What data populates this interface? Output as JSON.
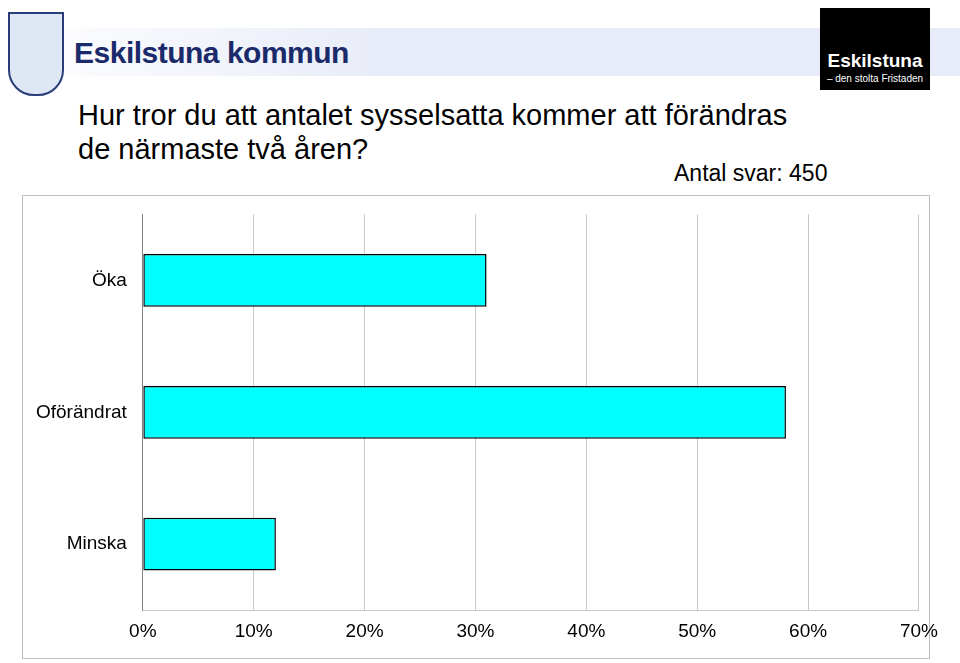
{
  "header": {
    "title": "Eskilstuna kommun",
    "logo": [
      "Eskilstuna",
      "– den stolta Fristaden"
    ]
  },
  "chart_data": {
    "type": "bar",
    "orientation": "horizontal",
    "title": "Hur tror du att antalet sysselsatta kommer att förändras de närmaste två åren?",
    "annotations": [
      "Antal svar: 450"
    ],
    "categories": [
      "Öka",
      "Oförändrat",
      "Minska"
    ],
    "values": [
      31,
      58,
      12
    ],
    "color": "#00ffff",
    "xlim": [
      0,
      70
    ],
    "xticks": [
      {
        "value": 0,
        "label": "0%"
      },
      {
        "value": 10,
        "label": "10%"
      },
      {
        "value": 20,
        "label": "20%"
      },
      {
        "value": 30,
        "label": "30%"
      },
      {
        "value": 40,
        "label": "40%"
      },
      {
        "value": 50,
        "label": "50%"
      },
      {
        "value": 60,
        "label": "60%"
      },
      {
        "value": 70,
        "label": "70%"
      }
    ],
    "grid": true
  }
}
